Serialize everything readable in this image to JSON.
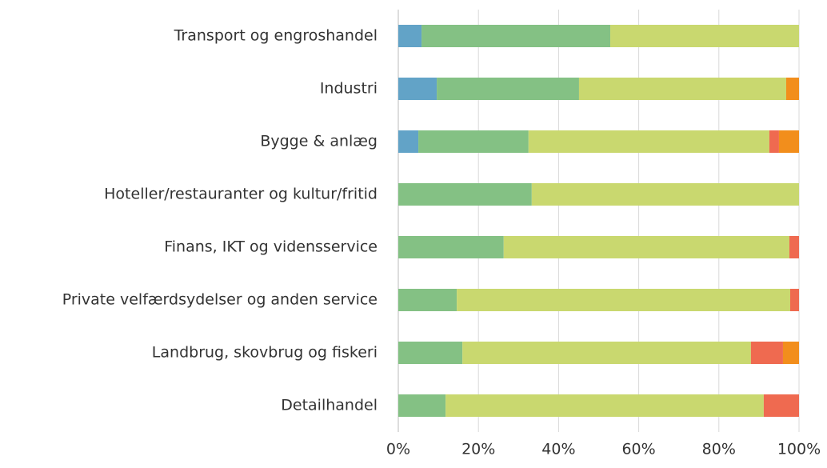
{
  "chart_data": {
    "type": "stacked_barh",
    "categories": [
      "Transport og engroshandel",
      "Industri",
      "Bygge & anlæg",
      "Hoteller/restauranter og kultur/fritid",
      "Finans, IKT og vidensservice",
      "Private velfærdsydelser og anden service",
      "Landbrug, skovbrug og fiskeri ",
      "Detailhandel"
    ],
    "series": [
      {
        "color": "#62a3c7",
        "values": [
          5.8,
          9.6,
          5.0,
          0,
          0,
          0,
          0,
          0
        ]
      },
      {
        "color": "#84c184",
        "values": [
          47.1,
          35.5,
          27.5,
          33.3,
          26.3,
          14.6,
          16.0,
          11.8
        ]
      },
      {
        "color": "#c9d86f",
        "values": [
          47.1,
          51.7,
          60.1,
          66.7,
          71.3,
          83.2,
          72.0,
          79.4
        ]
      },
      {
        "color": "#ef6a50",
        "values": [
          0,
          0,
          2.4,
          0,
          2.4,
          2.2,
          8.0,
          8.8
        ]
      },
      {
        "color": "#f28e1c",
        "values": [
          0,
          3.2,
          5.0,
          0,
          0,
          0,
          4.0,
          0
        ]
      }
    ],
    "xlim": [
      0,
      100
    ],
    "xticks": [
      {
        "value": 0,
        "label": "0%"
      },
      {
        "value": 20,
        "label": "20%"
      },
      {
        "value": 40,
        "label": "40%"
      },
      {
        "value": 60,
        "label": "60%"
      },
      {
        "value": 80,
        "label": "80%"
      },
      {
        "value": 100,
        "label": "100%"
      }
    ],
    "grid": true
  }
}
